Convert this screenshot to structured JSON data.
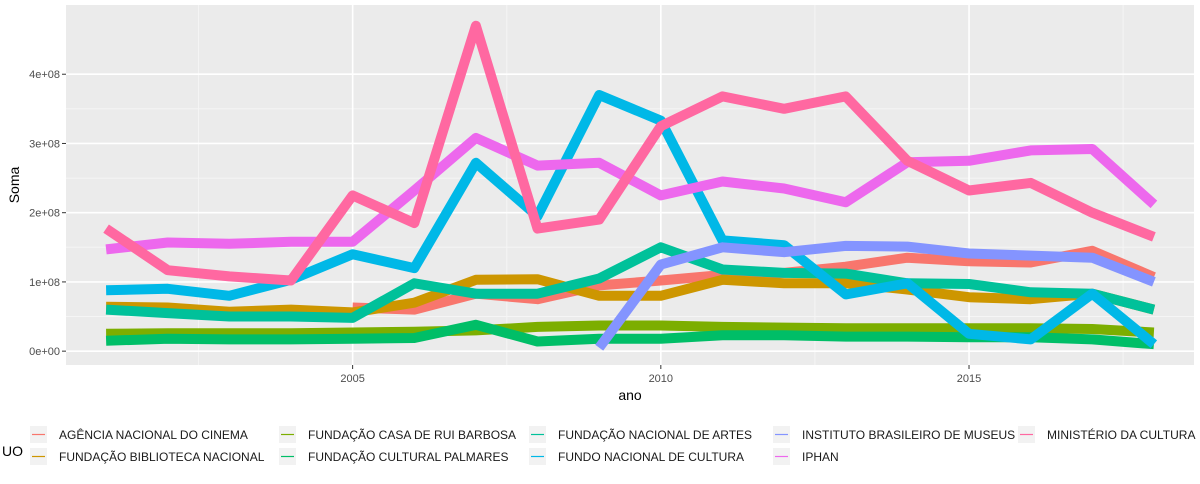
{
  "chart_data": {
    "type": "line",
    "xlabel": "ano",
    "ylabel": "Soma",
    "xlim": [
      2000.35,
      2018.65
    ],
    "ylim": [
      -20000000,
      500000000
    ],
    "x_ticks": [
      {
        "value": 2005,
        "label": "2005"
      },
      {
        "value": 2010,
        "label": "2010"
      },
      {
        "value": 2015,
        "label": "2015"
      }
    ],
    "y_ticks": [
      {
        "value": 0,
        "label": "0e+00"
      },
      {
        "value": 100000000,
        "label": "1e+08"
      },
      {
        "value": 200000000,
        "label": "2e+08"
      },
      {
        "value": 300000000,
        "label": "3e+08"
      },
      {
        "value": 400000000,
        "label": "4e+08"
      }
    ],
    "grid": true,
    "legend_position": "bottom",
    "legend_title": "UO",
    "series": [
      {
        "name": "AGÊNCIA NACIONAL DO CINEMA",
        "color": "#F8766D",
        "x": [
          2005,
          2006,
          2007,
          2008,
          2009,
          2010,
          2011,
          2012,
          2013,
          2014,
          2015,
          2016,
          2017,
          2018
        ],
        "y": [
          63000000,
          60000000,
          83000000,
          75000000,
          95000000,
          102000000,
          110000000,
          113000000,
          122000000,
          135000000,
          130000000,
          128000000,
          145000000,
          107000000
        ]
      },
      {
        "name": "FUNDAÇÃO BIBLIOTECA NACIONAL",
        "color": "#CD9600",
        "x": [
          2001,
          2002,
          2003,
          2004,
          2005,
          2006,
          2007,
          2008,
          2009,
          2010,
          2011,
          2012,
          2013,
          2014,
          2015,
          2016,
          2017,
          2018
        ],
        "y": [
          64000000,
          63000000,
          57000000,
          60000000,
          56000000,
          70000000,
          103000000,
          104000000,
          80000000,
          80000000,
          103000000,
          98000000,
          98000000,
          89000000,
          78000000,
          75000000,
          83000000,
          60000000
        ]
      },
      {
        "name": "FUNDAÇÃO CASA DE RUI BARBOSA",
        "color": "#7CAE00",
        "x": [
          2001,
          2002,
          2003,
          2004,
          2005,
          2006,
          2007,
          2008,
          2009,
          2010,
          2011,
          2012,
          2013,
          2014,
          2015,
          2016,
          2017,
          2018
        ],
        "y": [
          25000000,
          26000000,
          26000000,
          26000000,
          27000000,
          28000000,
          30000000,
          35000000,
          37000000,
          37000000,
          35000000,
          34000000,
          33000000,
          33000000,
          33000000,
          33000000,
          32000000,
          27000000
        ]
      },
      {
        "name": "FUNDAÇÃO CULTURAL PALMARES",
        "color": "#00BE67",
        "x": [
          2001,
          2002,
          2003,
          2004,
          2005,
          2006,
          2007,
          2008,
          2009,
          2010,
          2011,
          2012,
          2013,
          2014,
          2015,
          2016,
          2017,
          2018
        ],
        "y": [
          15000000,
          18000000,
          17000000,
          17000000,
          18000000,
          19000000,
          38000000,
          14000000,
          18000000,
          18000000,
          23000000,
          23000000,
          21000000,
          21000000,
          20000000,
          20000000,
          17000000,
          10000000
        ]
      },
      {
        "name": "FUNDAÇÃO NACIONAL DE ARTES",
        "color": "#00C19A",
        "x": [
          2001,
          2002,
          2003,
          2004,
          2005,
          2006,
          2007,
          2008,
          2009,
          2010,
          2011,
          2012,
          2013,
          2014,
          2015,
          2016,
          2017,
          2018
        ],
        "y": [
          60000000,
          55000000,
          50000000,
          50000000,
          48000000,
          98000000,
          83000000,
          83000000,
          105000000,
          150000000,
          118000000,
          113000000,
          112000000,
          98000000,
          97000000,
          85000000,
          83000000,
          60000000
        ]
      },
      {
        "name": "FUNDO NACIONAL DE CULTURA",
        "color": "#00B8E7",
        "x": [
          2001,
          2002,
          2003,
          2004,
          2005,
          2006,
          2007,
          2008,
          2009,
          2010,
          2011,
          2012,
          2013,
          2014,
          2015,
          2016,
          2017,
          2018
        ],
        "y": [
          88000000,
          90000000,
          80000000,
          103000000,
          140000000,
          120000000,
          272000000,
          195000000,
          370000000,
          333000000,
          160000000,
          153000000,
          82000000,
          98000000,
          25000000,
          17000000,
          83000000,
          10000000
        ]
      },
      {
        "name": "INSTITUTO BRASILEIRO DE MUSEUS",
        "color": "#8494FF",
        "x": [
          2009,
          2010,
          2011,
          2012,
          2013,
          2014,
          2015,
          2016,
          2017,
          2018
        ],
        "y": [
          5000000,
          125000000,
          150000000,
          143000000,
          152000000,
          151000000,
          141000000,
          138000000,
          135000000,
          100000000
        ]
      },
      {
        "name": "IPHAN",
        "color": "#ED68ED",
        "x": [
          2001,
          2002,
          2003,
          2004,
          2005,
          2006,
          2007,
          2008,
          2009,
          2010,
          2011,
          2012,
          2013,
          2014,
          2015,
          2016,
          2017,
          2018
        ],
        "y": [
          147000000,
          157000000,
          155000000,
          158000000,
          158000000,
          232000000,
          308000000,
          268000000,
          272000000,
          225000000,
          245000000,
          235000000,
          215000000,
          273000000,
          275000000,
          290000000,
          292000000,
          212000000
        ]
      },
      {
        "name": "MINISTÉRIO DA CULTURA",
        "color": "#FF68A1",
        "x": [
          2001,
          2002,
          2003,
          2004,
          2005,
          2006,
          2007,
          2008,
          2009,
          2010,
          2011,
          2012,
          2013,
          2014,
          2015,
          2016,
          2017,
          2018
        ],
        "y": [
          177000000,
          117000000,
          108000000,
          102000000,
          225000000,
          185000000,
          470000000,
          177000000,
          190000000,
          325000000,
          368000000,
          350000000,
          368000000,
          275000000,
          232000000,
          243000000,
          200000000,
          165000000
        ]
      }
    ]
  }
}
